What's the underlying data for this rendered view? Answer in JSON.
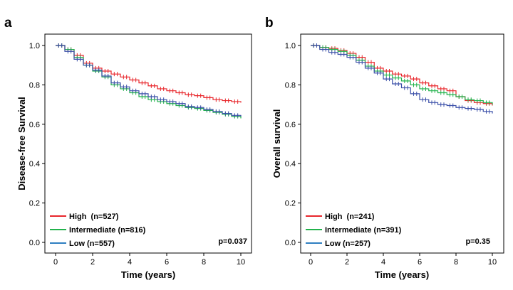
{
  "chart_data": [
    {
      "type": "line",
      "panel_letter": "a",
      "xlabel": "Time (years)",
      "ylabel": "Disease-free Survival",
      "xlim": [
        0,
        10
      ],
      "ylim": [
        0,
        1.0
      ],
      "xticks": [
        "0",
        "2",
        "4",
        "6",
        "8",
        "10"
      ],
      "yticks": [
        "0.0",
        "0.2",
        "0.4",
        "0.6",
        "0.8",
        "1.0"
      ],
      "grid": false,
      "legend_position": "bottom-left",
      "p_value": "p=0.037",
      "series": [
        {
          "name": "High  (n=527)",
          "color": "#e8262b",
          "x": [
            0,
            0.5,
            1,
            1.5,
            2,
            2.5,
            3,
            3.5,
            4,
            4.5,
            5,
            5.5,
            6,
            6.5,
            7,
            7.5,
            8,
            8.5,
            9,
            9.5,
            10
          ],
          "y": [
            1.0,
            0.98,
            0.95,
            0.91,
            0.885,
            0.87,
            0.855,
            0.84,
            0.825,
            0.81,
            0.795,
            0.78,
            0.77,
            0.76,
            0.75,
            0.745,
            0.735,
            0.725,
            0.72,
            0.715,
            0.71
          ]
        },
        {
          "name": "Intermediate (n=816)",
          "color": "#22b24c",
          "x": [
            0,
            0.5,
            1,
            1.5,
            2,
            2.5,
            3,
            3.5,
            4,
            4.5,
            5,
            5.5,
            6,
            6.5,
            7,
            7.5,
            8,
            8.5,
            9,
            9.5,
            10
          ],
          "y": [
            1.0,
            0.98,
            0.94,
            0.9,
            0.87,
            0.84,
            0.8,
            0.78,
            0.76,
            0.74,
            0.725,
            0.715,
            0.705,
            0.695,
            0.685,
            0.68,
            0.67,
            0.66,
            0.65,
            0.64,
            0.63
          ]
        },
        {
          "name": "Low (n=557)",
          "color": "#3a4fa8",
          "x": [
            0,
            0.5,
            1,
            1.5,
            2,
            2.5,
            3,
            3.5,
            4,
            4.5,
            5,
            5.5,
            6,
            6.5,
            7,
            7.5,
            8,
            8.5,
            9,
            9.5,
            10
          ],
          "y": [
            1.0,
            0.97,
            0.93,
            0.9,
            0.875,
            0.845,
            0.81,
            0.79,
            0.77,
            0.755,
            0.74,
            0.725,
            0.715,
            0.705,
            0.69,
            0.685,
            0.675,
            0.665,
            0.655,
            0.645,
            0.64
          ]
        }
      ]
    },
    {
      "type": "line",
      "panel_letter": "b",
      "xlabel": "Time (years)",
      "ylabel": "Overall survival",
      "xlim": [
        0,
        10
      ],
      "ylim": [
        0,
        1.0
      ],
      "xticks": [
        "0",
        "2",
        "4",
        "6",
        "8",
        "10"
      ],
      "yticks": [
        "0.0",
        "0.2",
        "0.4",
        "0.6",
        "0.8",
        "1.0"
      ],
      "grid": false,
      "legend_position": "bottom-left",
      "p_value": "p=0.35",
      "series": [
        {
          "name": "High  (n=241)",
          "color": "#e8262b",
          "x": [
            0,
            0.5,
            1,
            1.5,
            2,
            2.5,
            3,
            3.5,
            4,
            4.5,
            5,
            5.5,
            6,
            6.5,
            7,
            7.5,
            8,
            8.5,
            9,
            9.5,
            10
          ],
          "y": [
            1.0,
            0.99,
            0.985,
            0.975,
            0.96,
            0.94,
            0.915,
            0.885,
            0.87,
            0.855,
            0.845,
            0.83,
            0.81,
            0.795,
            0.78,
            0.77,
            0.74,
            0.72,
            0.71,
            0.705,
            0.695
          ]
        },
        {
          "name": "Intermediate (n=391)",
          "color": "#22b24c",
          "x": [
            0,
            0.5,
            1,
            1.5,
            2,
            2.5,
            3,
            3.5,
            4,
            4.5,
            5,
            5.5,
            6,
            6.5,
            7,
            7.5,
            8,
            8.5,
            9,
            9.5,
            10
          ],
          "y": [
            1.0,
            0.99,
            0.98,
            0.97,
            0.95,
            0.925,
            0.895,
            0.87,
            0.85,
            0.835,
            0.82,
            0.8,
            0.78,
            0.77,
            0.76,
            0.75,
            0.74,
            0.725,
            0.72,
            0.71,
            0.7
          ]
        },
        {
          "name": "Low (n=257)",
          "color": "#3a4fa8",
          "x": [
            0,
            0.5,
            1,
            1.5,
            2,
            2.5,
            3,
            3.5,
            4,
            4.5,
            5,
            5.5,
            6,
            6.5,
            7,
            7.5,
            8,
            8.5,
            9,
            9.5,
            10
          ],
          "y": [
            1.0,
            0.98,
            0.965,
            0.955,
            0.94,
            0.915,
            0.885,
            0.86,
            0.83,
            0.805,
            0.785,
            0.755,
            0.725,
            0.71,
            0.7,
            0.695,
            0.685,
            0.68,
            0.675,
            0.665,
            0.655
          ]
        }
      ]
    }
  ]
}
